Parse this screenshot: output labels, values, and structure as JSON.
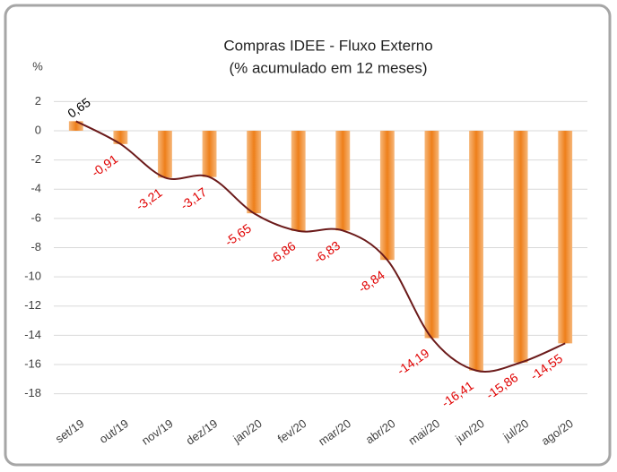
{
  "chart_data": {
    "type": "bar",
    "title": "Compras IDEE - Fluxo Externo",
    "subtitle": "(% acumulado em 12 meses)",
    "y_label": "%",
    "categories": [
      "set/19",
      "out/19",
      "nov/19",
      "dez/19",
      "jan/20",
      "fev/20",
      "mar/20",
      "abr/20",
      "mai/20",
      "jun/20",
      "jul/20",
      "ago/20"
    ],
    "values": [
      0.65,
      -0.91,
      -3.21,
      -3.17,
      -5.65,
      -6.86,
      -6.83,
      -8.84,
      -14.19,
      -16.41,
      -15.86,
      -14.55
    ],
    "value_labels": [
      "0,65",
      "-0,91",
      "-3,21",
      "-3,17",
      "-5,65",
      "-6,86",
      "-6,83",
      "-8,84",
      "-14,19",
      "-16,41",
      "-15,86",
      "-14,55"
    ],
    "color": "#f08a24",
    "line_color": "#6b1a1a",
    "ylim": [
      -19,
      3
    ],
    "yticks": [
      2,
      0,
      -2,
      -4,
      -6,
      -8,
      -10,
      -12,
      -14,
      -16,
      -18
    ],
    "grid": true
  }
}
